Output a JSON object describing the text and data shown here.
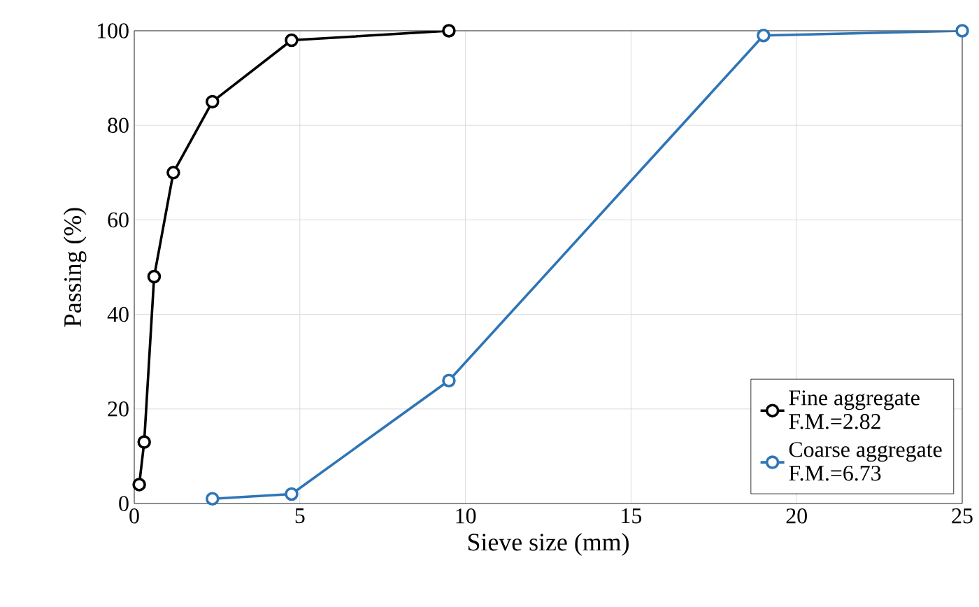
{
  "chart_data": {
    "type": "line",
    "xlabel": "Sieve size (mm)",
    "ylabel": "Passing (%)",
    "xlim": [
      0,
      25
    ],
    "ylim": [
      0,
      100
    ],
    "xticks": [
      0,
      5,
      10,
      15,
      20,
      25
    ],
    "yticks": [
      0,
      20,
      40,
      60,
      80,
      100
    ],
    "grid": true,
    "legend": "bottom right",
    "marker": "circle",
    "line_style": "solid",
    "annotations": [
      "F.M.=2.82",
      "F.M.=6.73"
    ],
    "series": [
      {
        "name": "Fine aggregate",
        "color": "#000000",
        "x": [
          0.15,
          0.3,
          0.6,
          1.18,
          2.36,
          4.75,
          9.5
        ],
        "values": [
          4,
          13,
          48,
          70,
          85,
          98,
          100
        ]
      },
      {
        "name": "Coarse aggregate",
        "color": "#2e75b6",
        "x": [
          2.36,
          4.75,
          9.5,
          19,
          25
        ],
        "values": [
          1,
          2,
          26,
          99,
          100
        ]
      }
    ]
  }
}
